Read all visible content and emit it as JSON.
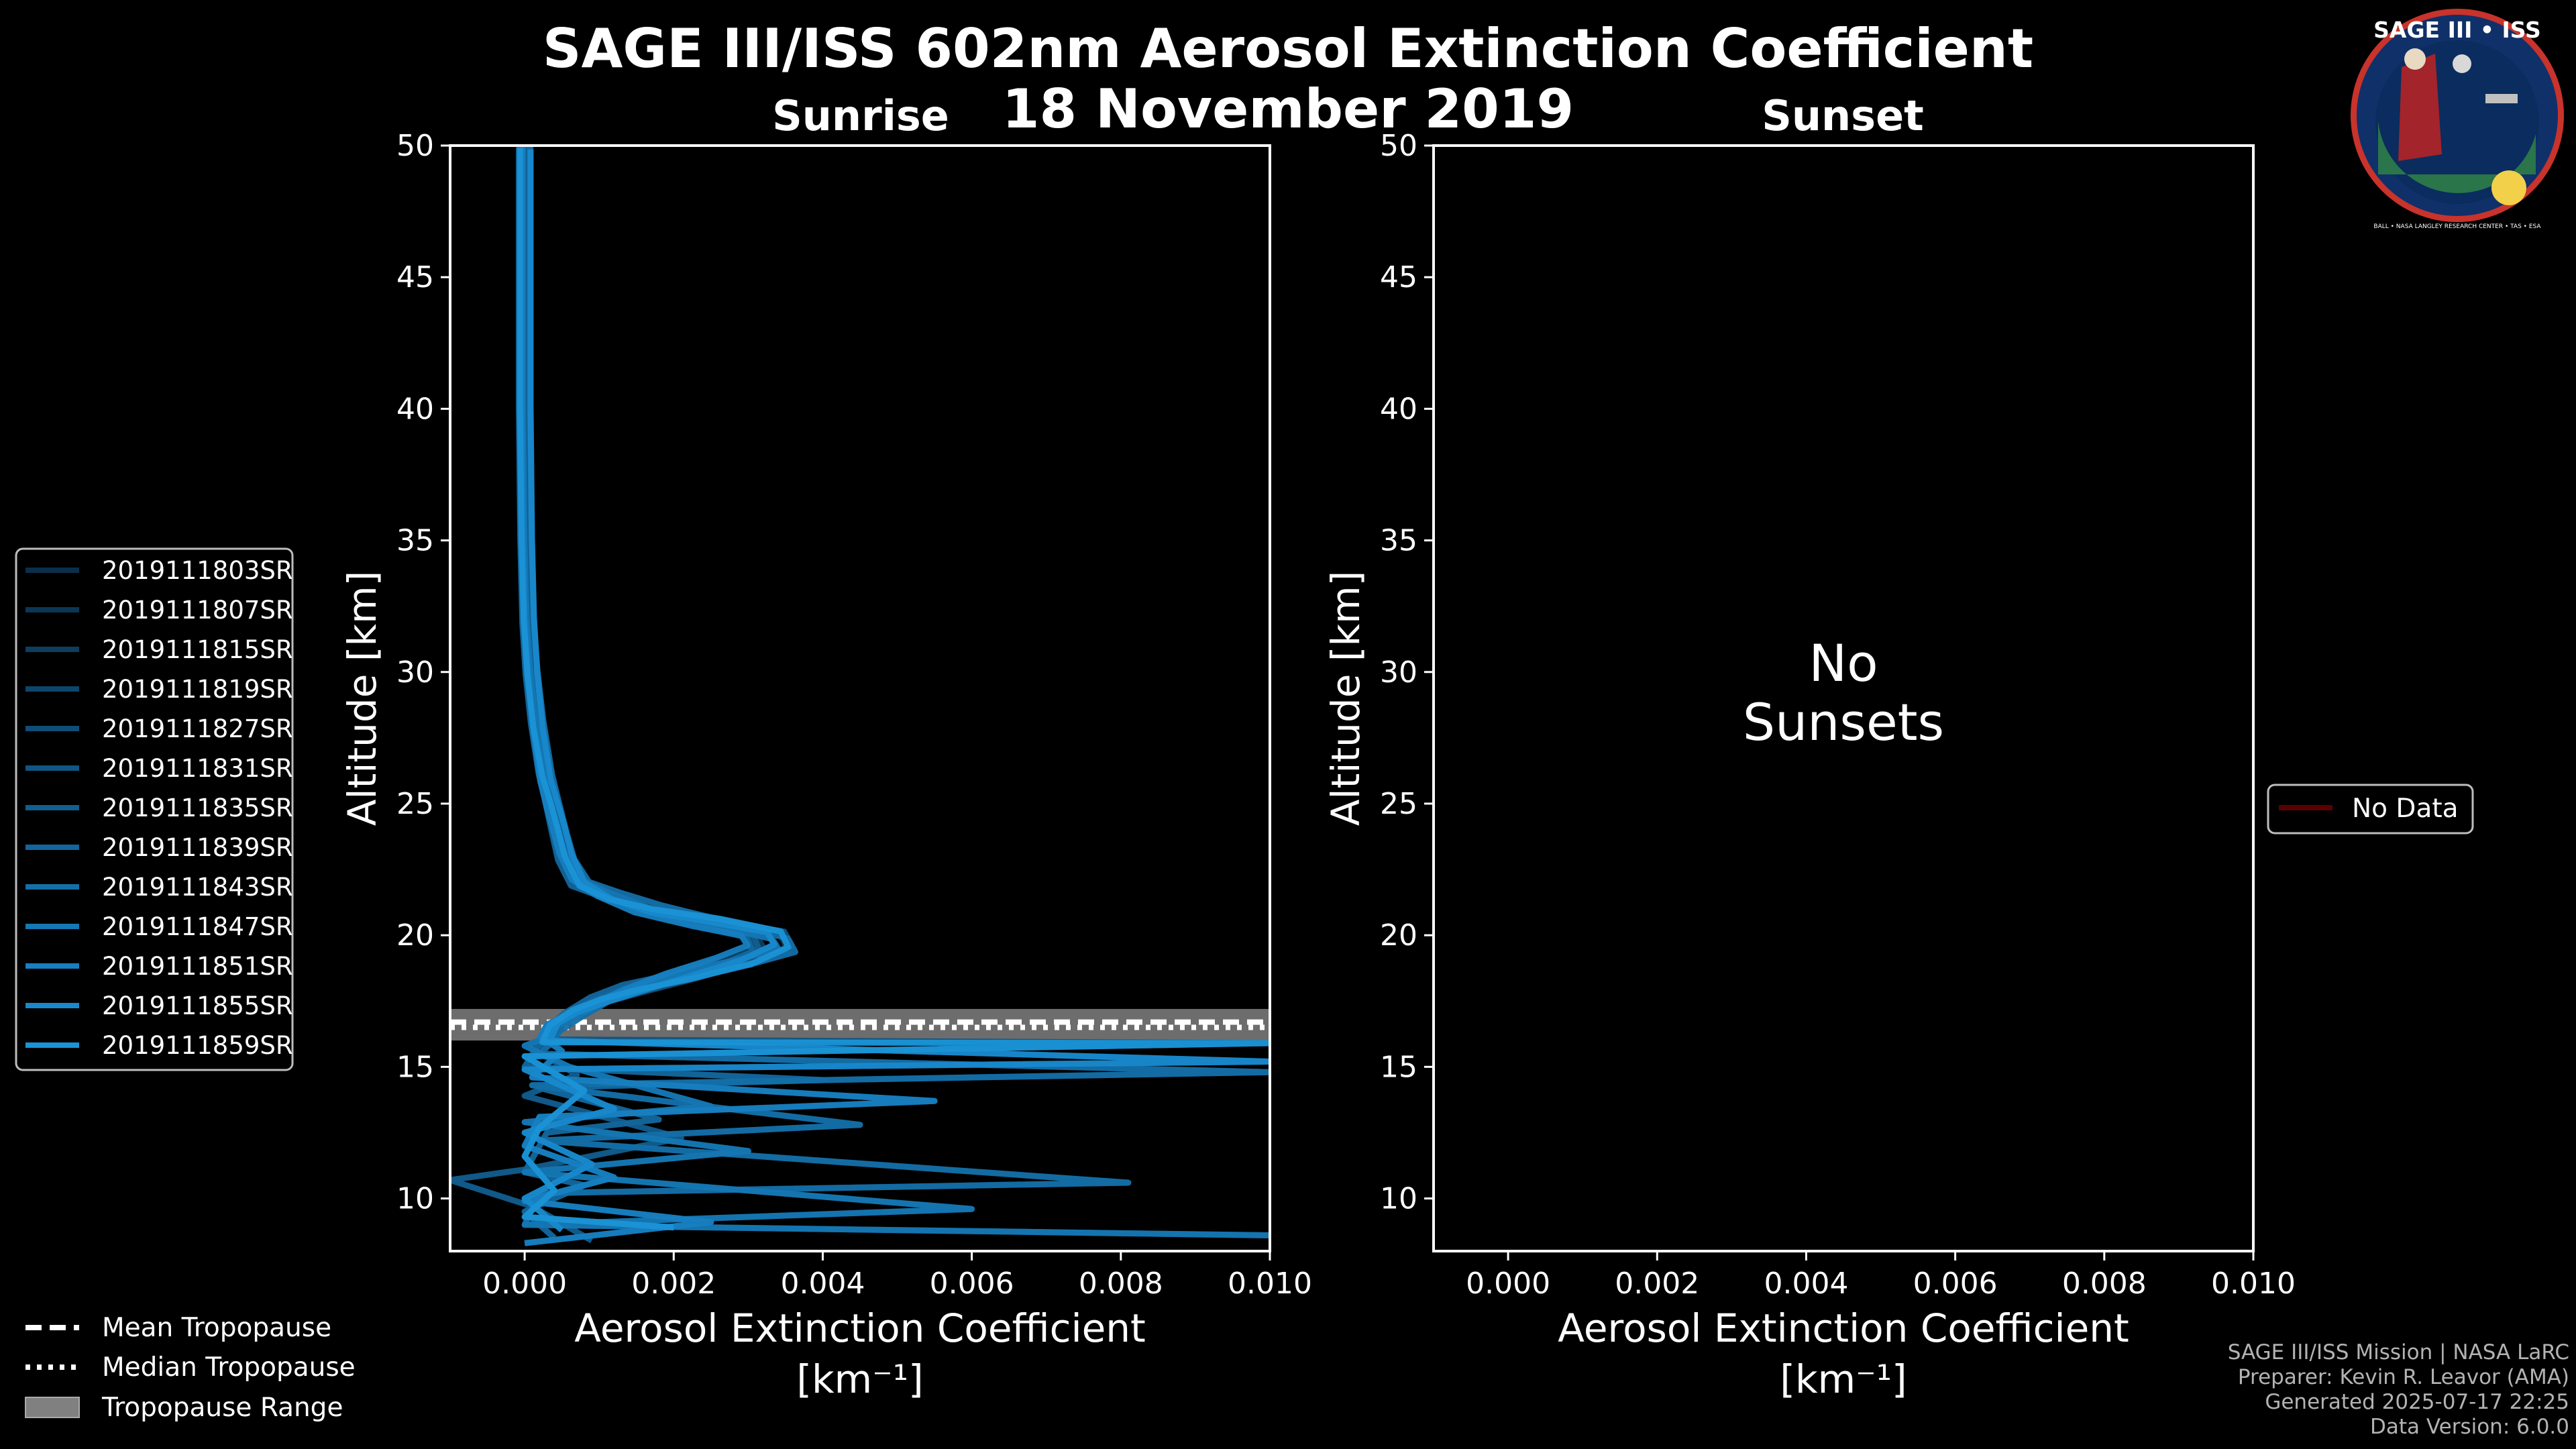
{
  "header": {
    "title_line1": "SAGE III/ISS 602nm Aerosol Extinction Coefficient",
    "title_line2": "18 November 2019",
    "sunrise_label": "Sunrise",
    "sunset_label": "Sunset"
  },
  "logo": {
    "text": "SAGE III • ISS",
    "ring_text": "BALL • NASA LANGLEY RESEARCH CENTER • TAS • ESA"
  },
  "footer": {
    "line1": "SAGE III/ISS Mission | NASA LaRC",
    "line2": "Preparer: Kevin R. Leavor (AMA)",
    "line3": "Generated 2025-07-17 22:25",
    "line4": "Data Version: 6.0.0"
  },
  "colors": {
    "series_dark": "#0a3a5c",
    "series_light": "#1a93d6",
    "tropopause_range": "#808080",
    "no_data": "#5a0000"
  },
  "chart_data": [
    {
      "type": "line",
      "panel": "Sunrise",
      "xlabel": "Aerosol Extinction Coefficient",
      "xunits": "[km⁻¹]",
      "ylabel": "Altitude [km]",
      "xlim": [
        -0.001,
        0.01
      ],
      "ylim": [
        8,
        50
      ],
      "xticks": [
        "0.000",
        "0.002",
        "0.004",
        "0.006",
        "0.008",
        "0.010"
      ],
      "xtick_values": [
        0,
        0.002,
        0.004,
        0.006,
        0.008,
        0.01
      ],
      "yticks": [
        "10",
        "15",
        "20",
        "25",
        "30",
        "35",
        "40",
        "45",
        "50"
      ],
      "ytick_values": [
        10,
        15,
        20,
        25,
        30,
        35,
        40,
        45,
        50
      ],
      "legend_position": "left",
      "series": [
        {
          "name": "2019111803SR",
          "color": "#0b2f4a"
        },
        {
          "name": "2019111807SR",
          "color": "#0c3654"
        },
        {
          "name": "2019111815SR",
          "color": "#0d3d5f"
        },
        {
          "name": "2019111819SR",
          "color": "#0e456b"
        },
        {
          "name": "2019111827SR",
          "color": "#0f4d77"
        },
        {
          "name": "2019111831SR",
          "color": "#105583"
        },
        {
          "name": "2019111835SR",
          "color": "#115e8f"
        },
        {
          "name": "2019111839SR",
          "color": "#13669c"
        },
        {
          "name": "2019111843SR",
          "color": "#146fa8"
        },
        {
          "name": "2019111847SR",
          "color": "#1577b4"
        },
        {
          "name": "2019111851SR",
          "color": "#1780c1"
        },
        {
          "name": "2019111855SR",
          "color": "#1889cc"
        },
        {
          "name": "2019111859SR",
          "color": "#1a93d6"
        }
      ],
      "tropopause": {
        "mean_label": "Mean Tropopause",
        "median_label": "Median Tropopause",
        "range_label": "Tropopause Range",
        "mean": 16.7,
        "median": 16.5,
        "range": [
          16.0,
          17.2
        ]
      },
      "profile_shape": {
        "alt": [
          50,
          45,
          40,
          35,
          32,
          30,
          28,
          26,
          25,
          24,
          23,
          22,
          21.5,
          21,
          20.5,
          20,
          19.5,
          19,
          18.5,
          18,
          17.5,
          17,
          16.5,
          16
        ],
        "ext": [
          0.0,
          0.0,
          0.0,
          2e-05,
          5e-05,
          0.0001,
          0.00018,
          0.0003,
          0.0004,
          0.0005,
          0.0006,
          0.0008,
          0.0012,
          0.0018,
          0.0027,
          0.0035,
          0.0036,
          0.0031,
          0.0023,
          0.0016,
          0.0011,
          0.0007,
          0.0004,
          0.0003
        ]
      }
    },
    {
      "type": "line",
      "panel": "Sunset",
      "xlabel": "Aerosol Extinction Coefficient",
      "xunits": "[km⁻¹]",
      "ylabel": "Altitude [km]",
      "xlim": [
        -0.001,
        0.01
      ],
      "ylim": [
        8,
        50
      ],
      "xticks": [
        "0.000",
        "0.002",
        "0.004",
        "0.006",
        "0.008",
        "0.010"
      ],
      "xtick_values": [
        0,
        0.002,
        0.004,
        0.006,
        0.008,
        0.01
      ],
      "yticks": [
        "10",
        "15",
        "20",
        "25",
        "30",
        "35",
        "40",
        "45",
        "50"
      ],
      "ytick_values": [
        10,
        15,
        20,
        25,
        30,
        35,
        40,
        45,
        50
      ],
      "annotation_line1": "No",
      "annotation_line2": "Sunsets",
      "legend_position": "right",
      "series": [
        {
          "name": "No Data",
          "color": "#5a0000"
        }
      ]
    }
  ]
}
